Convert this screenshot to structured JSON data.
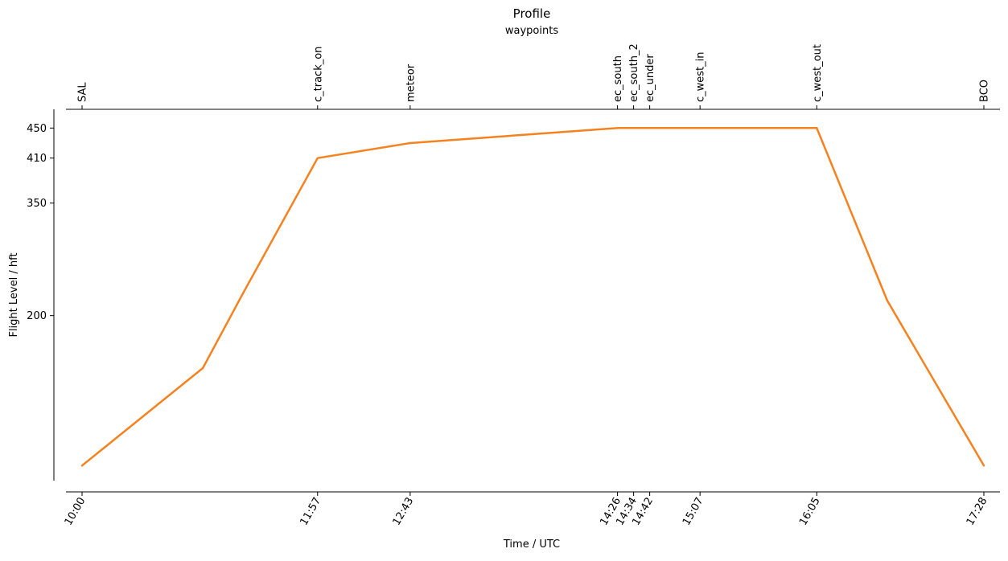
{
  "chart_data": {
    "type": "line",
    "title": "Profile",
    "subtitle": "waypoints",
    "xlabel": "Time / UTC",
    "ylabel": "Flight Level / hft",
    "grid": false,
    "y_ticks": [
      200,
      350,
      410,
      450
    ],
    "ylim": [
      -20,
      475
    ],
    "xlim": [
      "09:52",
      "17:36"
    ],
    "waypoints": [
      {
        "name": "SAL",
        "time": "10:00"
      },
      {
        "name": "c_track_on",
        "time": "11:57"
      },
      {
        "name": "meteor",
        "time": "12:43"
      },
      {
        "name": "ec_south",
        "time": "14:26"
      },
      {
        "name": "ec_south_2",
        "time": "14:34"
      },
      {
        "name": "ec_under",
        "time": "14:42"
      },
      {
        "name": "c_west_in",
        "time": "15:07"
      },
      {
        "name": "c_west_out",
        "time": "16:05"
      },
      {
        "name": "BCO",
        "time": "17:28"
      }
    ],
    "x_ticks": [
      "10:00",
      "11:57",
      "12:43",
      "14:26",
      "14:34",
      "14:42",
      "15:07",
      "16:05",
      "17:28"
    ],
    "series": [
      {
        "color": "#f5821f",
        "x": [
          "10:00",
          "11:00",
          "11:20",
          "11:57",
          "12:43",
          "14:26",
          "14:34",
          "14:42",
          "15:07",
          "16:05",
          "16:40",
          "17:28"
        ],
        "y": [
          0,
          130,
          230,
          410,
          430,
          450,
          450,
          450,
          450,
          450,
          220,
          0
        ]
      }
    ]
  }
}
